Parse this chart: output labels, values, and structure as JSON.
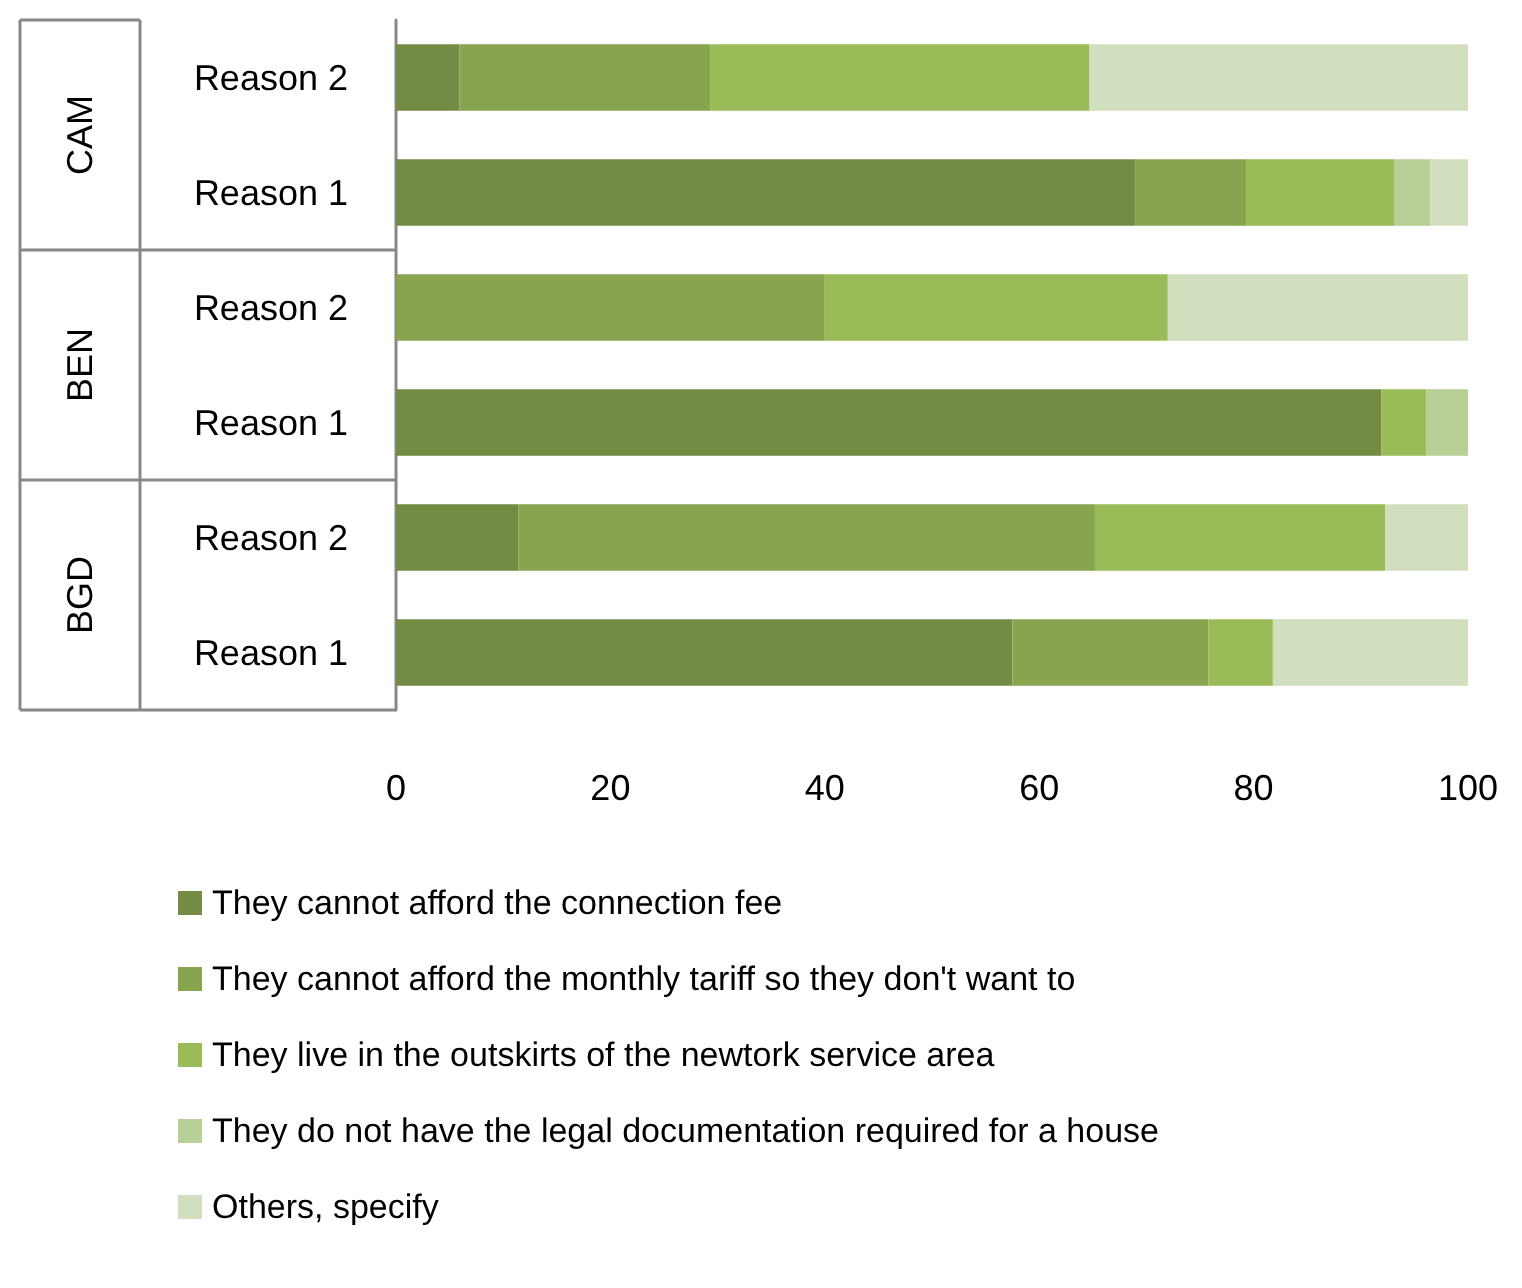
{
  "chart_data": {
    "type": "bar",
    "orientation": "horizontal",
    "stacked": true,
    "categories": [
      "Reason 2",
      "Reason 1",
      "Reason 2",
      "Reason 1",
      "Reason 2",
      "Reason 1"
    ],
    "series": [
      {
        "name": "They cannot afford the connection fee",
        "color": "#738b42",
        "values": [
          5.9,
          69.0,
          0,
          91.9,
          11.4,
          57.5
        ]
      },
      {
        "name": "They cannot afford the monthly tariff so they don't want to",
        "color": "#89a44e",
        "values": [
          23.4,
          10.3,
          40.0,
          0,
          53.8,
          18.3
        ]
      },
      {
        "name": "They live in the outskirts of the newtork service area",
        "color": "#9bbb59",
        "values": [
          35.4,
          13.8,
          32.0,
          4.2,
          27.1,
          6.0
        ]
      },
      {
        "name": "They do not have the legal documentation required for a house",
        "color": "#b8cf95",
        "values": [
          0,
          3.4,
          0,
          3.9,
          0,
          0
        ]
      },
      {
        "name": "Others, specify",
        "color": "#d1dfbe",
        "values": [
          35.3,
          3.5,
          28.0,
          0,
          7.7,
          18.2
        ]
      }
    ],
    "annotations": [
      "CAM",
      "BEN",
      "BGD"
    ],
    "xlim": [
      0,
      100
    ],
    "xticks": [
      0,
      20,
      40,
      60,
      80,
      100
    ],
    "grid": false,
    "legend": "bottom"
  }
}
